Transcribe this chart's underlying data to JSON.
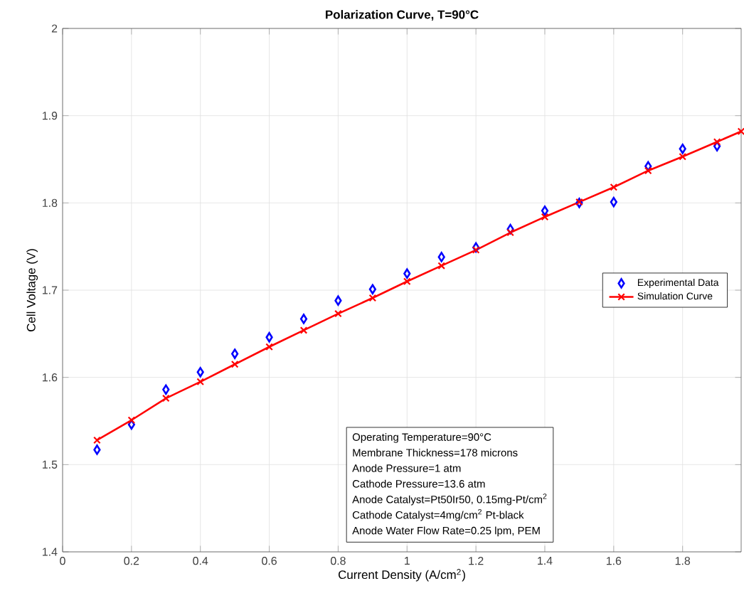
{
  "chart_data": {
    "type": "line",
    "title": "Polarization Curve, T=90°C",
    "xlabel": "Current Density (A/cm$^{2}$)",
    "ylabel": "Cell Voltage (V)",
    "xlim": [
      0,
      1.97
    ],
    "ylim": [
      1.4,
      2
    ],
    "xticks": [
      0,
      0.2,
      0.4,
      0.6,
      0.8,
      1,
      1.2,
      1.4,
      1.6,
      1.8
    ],
    "yticks": [
      1.4,
      1.5,
      1.6,
      1.7,
      1.8,
      1.9,
      2
    ],
    "grid": true,
    "legend": "right",
    "series": [
      {
        "name": "Experimental Data",
        "type": "scatter",
        "marker": "diamond",
        "color": "#0000ff",
        "x": [
          0.1,
          0.2,
          0.3,
          0.4,
          0.5,
          0.6,
          0.7,
          0.8,
          0.9,
          1.0,
          1.1,
          1.2,
          1.3,
          1.4,
          1.5,
          1.6,
          1.7,
          1.8,
          1.9
        ],
        "values": [
          1.517,
          1.546,
          1.586,
          1.606,
          1.627,
          1.646,
          1.667,
          1.688,
          1.701,
          1.719,
          1.738,
          1.749,
          1.77,
          1.791,
          1.8,
          1.801,
          1.842,
          1.862,
          1.865
        ]
      },
      {
        "name": "Simulation Curve",
        "marker": "cross",
        "line_style": "solid",
        "color": "#ff0000",
        "x": [
          0.1,
          0.2,
          0.3,
          0.4,
          0.5,
          0.6,
          0.7,
          0.8,
          0.9,
          1.0,
          1.1,
          1.2,
          1.3,
          1.4,
          1.5,
          1.6,
          1.7,
          1.8,
          1.9,
          1.97
        ],
        "values": [
          1.528,
          1.551,
          1.576,
          1.595,
          1.615,
          1.635,
          1.654,
          1.673,
          1.691,
          1.71,
          1.728,
          1.746,
          1.766,
          1.784,
          1.801,
          1.818,
          1.837,
          1.853,
          1.87,
          1.882
        ]
      }
    ],
    "annotations": [
      "Operating Temperature=90°C",
      "Membrane Thickness=178 microns",
      "Anode Pressure=1 atm",
      "Cathode Pressure=13.6 atm",
      "Anode Catalyst=Pt50Ir50, 0.15mg-Pt/cm$^{2}$",
      "Cathode Catalyst=4mg/cm$^{2}$ Pt-black",
      "Anode Water Flow Rate=0.25 lpm, PEM"
    ]
  }
}
